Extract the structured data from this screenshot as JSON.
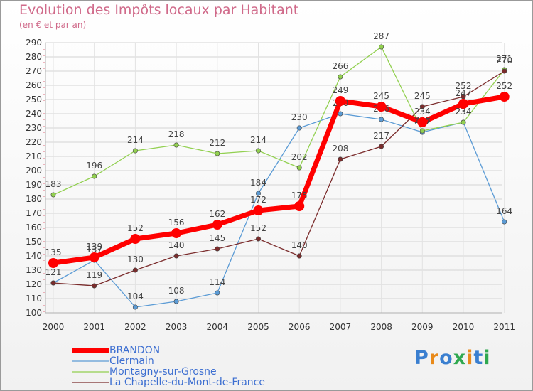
{
  "header": {
    "title": "Evolution des Impôts locaux par Habitant",
    "subtitle": "(en € et par an)"
  },
  "chart_data": {
    "type": "line",
    "x": [
      "2000",
      "2001",
      "2002",
      "2003",
      "2004",
      "2005",
      "2006",
      "2007",
      "2008",
      "2009",
      "2010",
      "2011"
    ],
    "ylim": [
      100,
      290
    ],
    "yticks": [
      100,
      110,
      120,
      130,
      140,
      150,
      160,
      170,
      180,
      190,
      200,
      210,
      220,
      230,
      240,
      250,
      260,
      270,
      280,
      290
    ],
    "grid": true,
    "legend_position": "bottom-left",
    "series": [
      {
        "name": "Clermain",
        "color": "#5b9bd5",
        "values": [
          121,
          137,
          104,
          108,
          114,
          184,
          230,
          240,
          236,
          227,
          234,
          164
        ],
        "labels": [
          "",
          "137",
          "104",
          "108",
          "114",
          "184",
          "230",
          "240",
          "236",
          "227",
          "234",
          "164"
        ]
      },
      {
        "name": "Montagny-sur-Grosne",
        "color": "#92d050",
        "values": [
          183,
          196,
          214,
          218,
          212,
          214,
          202,
          266,
          287,
          228,
          234,
          271
        ],
        "labels": [
          "183",
          "196",
          "214",
          "218",
          "212",
          "214",
          "202",
          "266",
          "287",
          "228",
          "234",
          "271"
        ]
      },
      {
        "name": "La Chapelle-du-Mont-de-France",
        "color": "#7b2c2c",
        "values": [
          121,
          119,
          130,
          140,
          145,
          152,
          140,
          208,
          217,
          245,
          252,
          270
        ],
        "labels": [
          "121",
          "119",
          "130",
          "140",
          "145",
          "152",
          "140",
          "208",
          "217",
          "245",
          "252",
          "270"
        ]
      },
      {
        "name": "BRANDON",
        "color": "#ff0000",
        "values": [
          135,
          139,
          152,
          156,
          162,
          172,
          175,
          249,
          245,
          234,
          247,
          252
        ],
        "labels": [
          "135",
          "139",
          "152",
          "156",
          "162",
          "172",
          "175",
          "249",
          "245",
          "234",
          "247",
          "252"
        ]
      }
    ]
  },
  "legend": {
    "items": [
      {
        "label": "BRANDON",
        "color": "#ff0000",
        "text_color": "#3d6fd1"
      },
      {
        "label": "Clermain",
        "color": "#5b9bd5",
        "text_color": "#3d6fd1"
      },
      {
        "label": "Montagny-sur-Grosne",
        "color": "#92d050",
        "text_color": "#3d6fd1"
      },
      {
        "label": "La Chapelle-du-Mont-de-France",
        "color": "#7b2c2c",
        "text_color": "#3d6fd1"
      }
    ]
  },
  "logo": {
    "text": "Proxiti",
    "letter_colors": [
      "#3a7fd0",
      "#e98a1a",
      "#3a7fd0",
      "#2fa84f",
      "#e98a1a",
      "#3a7fd0",
      "#2fa84f"
    ]
  }
}
